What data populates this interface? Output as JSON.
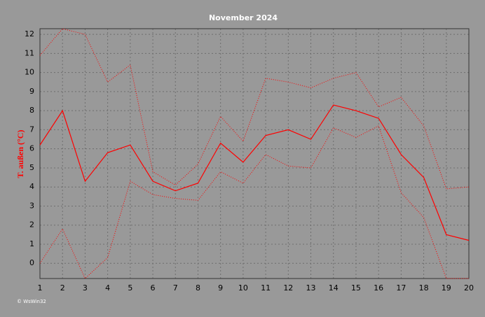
{
  "chart_data": {
    "type": "line",
    "title": "November 2024",
    "y_label": "T. außen (°C)",
    "footer": "© WsWin32",
    "x": [
      1,
      2,
      3,
      4,
      5,
      6,
      7,
      8,
      9,
      10,
      11,
      12,
      13,
      14,
      15,
      16,
      17,
      18,
      19,
      20
    ],
    "series": [
      {
        "color": "#ff0000",
        "line_style": "solid",
        "values": [
          6.2,
          8.0,
          4.3,
          5.8,
          6.2,
          4.3,
          3.8,
          4.2,
          6.3,
          5.3,
          6.7,
          7.0,
          6.5,
          8.3,
          8.0,
          7.6,
          5.7,
          4.5,
          1.5,
          1.2
        ]
      },
      {
        "color": "#ff0000",
        "line_style": "dotted",
        "values": [
          10.9,
          12.3,
          12.0,
          9.5,
          10.4,
          4.8,
          4.1,
          5.2,
          7.7,
          6.4,
          9.7,
          9.5,
          9.2,
          9.7,
          10.0,
          8.2,
          8.7,
          7.2,
          3.9,
          4.0
        ]
      },
      {
        "color": "#ff0000",
        "line_style": "dotted",
        "values": [
          0,
          1.8,
          -0.8,
          0.3,
          4.3,
          3.6,
          3.4,
          3.3,
          4.8,
          4.2,
          5.7,
          5.1,
          5.0,
          7.1,
          6.6,
          7.2,
          3.7,
          2.4,
          -0.8,
          -0.8
        ]
      }
    ],
    "xlim": [
      1,
      20
    ],
    "xticks": [
      1,
      2,
      3,
      4,
      5,
      6,
      7,
      8,
      9,
      10,
      11,
      12,
      13,
      14,
      15,
      16,
      17,
      18,
      19,
      20
    ],
    "ylim": [
      -0.8,
      12.3
    ],
    "yticks": [
      0,
      1,
      2,
      3,
      4,
      5,
      6,
      7,
      8,
      9,
      10,
      11,
      12
    ],
    "grid": true
  }
}
